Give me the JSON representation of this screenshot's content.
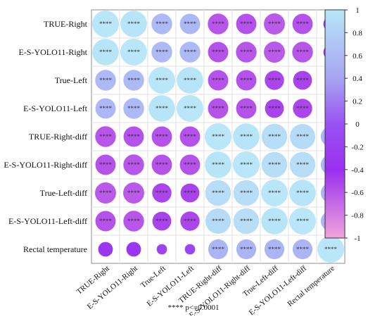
{
  "chart_data": {
    "type": "heatmap",
    "rows": [
      "TRUE-Right",
      "E-S-YOLO11-Right",
      "True-Left",
      "E-S-YOLO11-Left",
      "TRUE-Right-diff",
      "E-S-YOLO11-Right-diff",
      "True-Left-diff",
      "E-S-YOLO11-Left-diff",
      "Rectal temperature"
    ],
    "columns": [
      "TRUE-Right",
      "E-S-YOLO11-Right",
      "True-Left",
      "E-S-YOLO11-Left",
      "TRUE-Right-diff",
      "E-S-YOLO11-Right-diff",
      "True-Left-diff",
      "E-S-YOLO11-Left-diff",
      "Rectal temperature"
    ],
    "values": [
      [
        1.0,
        0.98,
        0.6,
        0.58,
        -0.6,
        -0.58,
        -0.62,
        -0.58,
        -0.3
      ],
      [
        0.98,
        1.0,
        0.6,
        0.6,
        -0.58,
        -0.6,
        -0.62,
        -0.6,
        -0.3
      ],
      [
        0.6,
        0.6,
        1.0,
        0.98,
        -0.58,
        -0.58,
        -0.52,
        -0.5,
        -0.15
      ],
      [
        0.58,
        0.6,
        0.98,
        1.0,
        -0.58,
        -0.58,
        -0.5,
        -0.52,
        -0.15
      ],
      [
        -0.6,
        -0.58,
        -0.58,
        -0.58,
        1.0,
        0.98,
        0.92,
        0.9,
        0.55
      ],
      [
        -0.58,
        -0.6,
        -0.58,
        -0.58,
        0.98,
        1.0,
        0.92,
        0.92,
        0.55
      ],
      [
        -0.62,
        -0.62,
        -0.52,
        -0.5,
        0.92,
        0.92,
        1.0,
        0.98,
        0.55
      ],
      [
        -0.58,
        -0.6,
        -0.5,
        -0.52,
        0.9,
        0.92,
        0.98,
        1.0,
        0.55
      ],
      [
        -0.3,
        -0.3,
        -0.15,
        -0.15,
        0.55,
        0.55,
        0.55,
        0.55,
        1.0
      ]
    ],
    "significance": [
      [
        "****",
        "****",
        "****",
        "****",
        "****",
        "****",
        "****",
        "****",
        ""
      ],
      [
        "****",
        "****",
        "****",
        "****",
        "****",
        "****",
        "****",
        "****",
        ""
      ],
      [
        "****",
        "****",
        "****",
        "****",
        "****",
        "****",
        "****",
        "****",
        ""
      ],
      [
        "****",
        "****",
        "****",
        "****",
        "****",
        "****",
        "****",
        "****",
        ""
      ],
      [
        "****",
        "****",
        "****",
        "****",
        "****",
        "****",
        "****",
        "****",
        "****"
      ],
      [
        "****",
        "****",
        "****",
        "****",
        "****",
        "****",
        "****",
        "****",
        "****"
      ],
      [
        "****",
        "****",
        "****",
        "****",
        "****",
        "****",
        "****",
        "****",
        "****"
      ],
      [
        "****",
        "****",
        "****",
        "****",
        "****",
        "****",
        "****",
        "****",
        "****"
      ],
      [
        "",
        "",
        "",
        "",
        "****",
        "****",
        "****",
        "****",
        "****"
      ]
    ],
    "colorbar": {
      "range": [
        -1,
        1
      ],
      "ticks": [
        "1",
        "0.8",
        "0.6",
        "0.4",
        "0.2",
        "0",
        "-0.2",
        "-0.4",
        "-0.6",
        "-0.8",
        "-1"
      ],
      "colors": {
        "neg_high": "#f1a4dc",
        "neg_mid": "#9a2ff0",
        "zero": "#9a52f2",
        "pos_mid": "#a7a4f3",
        "pos_high": "#b9e6f8"
      }
    },
    "legend_position": "right",
    "grid": true,
    "footnote": "**** p<=0.0001"
  }
}
